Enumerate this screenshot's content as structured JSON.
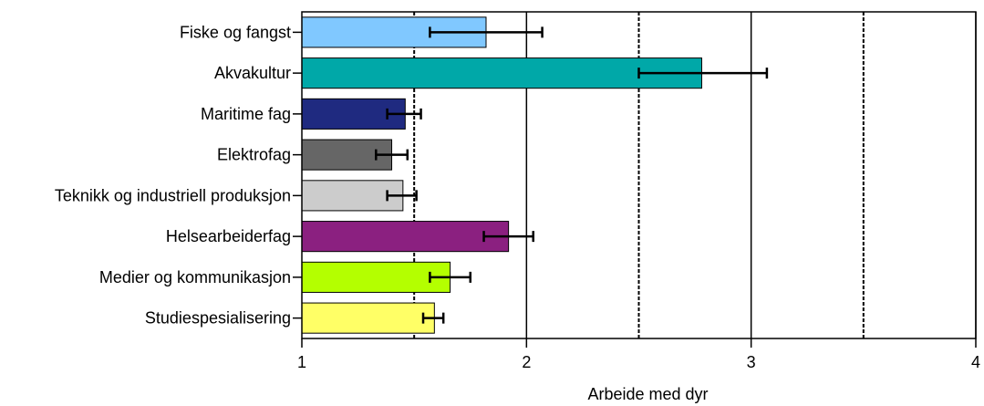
{
  "chart_data": {
    "type": "bar",
    "orientation": "horizontal",
    "xlabel": "Arbeide med dyr",
    "xlim": [
      1,
      4
    ],
    "xticks": [
      1,
      2,
      3,
      4
    ],
    "grid": {
      "major": [
        2,
        3,
        4
      ],
      "minor_dashed": [
        1.5,
        2.5,
        3.5
      ]
    },
    "categories": [
      "Fiske og fangst",
      "Akvakultur",
      "Maritime fag",
      "Elektrofag",
      "Teknikk og industriell produksjon",
      "Helsearbeiderfag",
      "Medier og kommunikasjon",
      "Studiespesialisering"
    ],
    "values": [
      1.82,
      2.78,
      1.46,
      1.4,
      1.45,
      1.92,
      1.66,
      1.59
    ],
    "error_low": [
      1.57,
      2.5,
      1.38,
      1.33,
      1.38,
      1.81,
      1.57,
      1.54
    ],
    "error_high": [
      2.07,
      3.07,
      1.53,
      1.47,
      1.51,
      2.03,
      1.75,
      1.63
    ],
    "colors": [
      "#80c8ff",
      "#00a8a8",
      "#1f2a80",
      "#666666",
      "#cccccc",
      "#8b2080",
      "#b4ff00",
      "#ffff66"
    ]
  }
}
